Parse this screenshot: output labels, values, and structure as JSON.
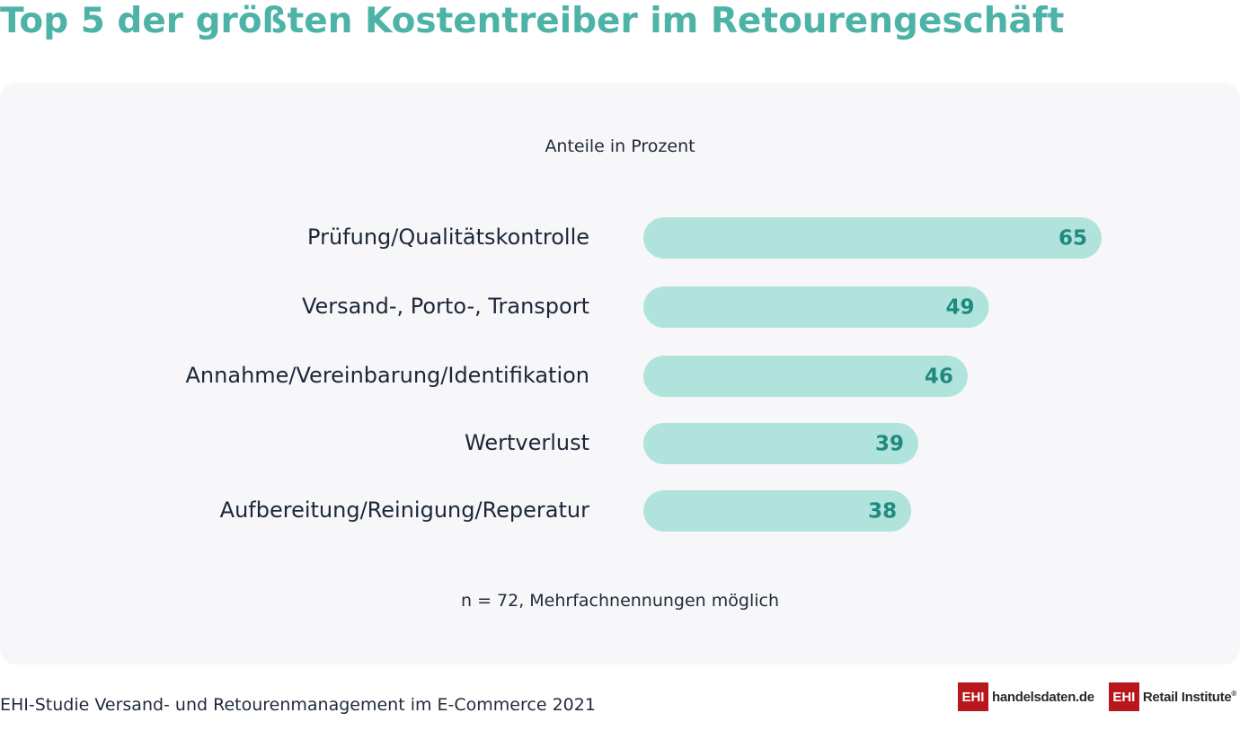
{
  "header": {
    "title": "Top 5 der größten Kostentreiber im Retourengeschäft"
  },
  "colors": {
    "title": "#4db3a7",
    "bar": "#b1e3dd",
    "value_label": "#1f8a7f",
    "panel_background": "#f7f7f9",
    "logo_red": "#b8171d"
  },
  "chart_data": {
    "type": "bar",
    "orientation": "horizontal",
    "subtitle": "Anteile in Prozent",
    "categories": [
      "Prüfung/Qualitätskontrolle",
      "Versand-, Porto-, Transport",
      "Annahme/Vereinbarung/Identifikation",
      "Wertverlust",
      "Aufbereitung/Reinigung/Reperatur"
    ],
    "values": [
      65,
      49,
      46,
      39,
      38
    ],
    "xlim": [
      0,
      65
    ],
    "grid": false,
    "legend": "none"
  },
  "footer": {
    "note": "n = 72, Mehrfachnennungen möglich",
    "source": "EHI-Studie Versand- und Retourenmanagement im E-Commerce 2021",
    "logos": [
      {
        "box": "EHI",
        "text": "handelsdaten.de"
      },
      {
        "box": "EHI",
        "text": "Retail Institute",
        "mark": "®"
      }
    ]
  }
}
